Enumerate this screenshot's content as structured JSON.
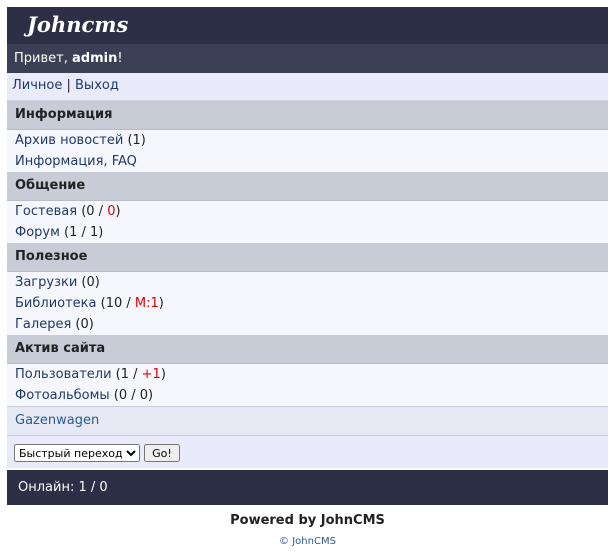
{
  "header": {
    "logo": "Johncms"
  },
  "greeting": {
    "before": "Привет, ",
    "user": "admin",
    "after": "!"
  },
  "user_menu": [
    {
      "text": "Личное"
    },
    {
      "text": " | "
    },
    {
      "text": "Выход"
    }
  ],
  "sections": [
    {
      "title": "Информация",
      "items": [
        {
          "link": "Архив новостей",
          "count": [
            {
              "text": " (1)"
            }
          ]
        },
        {
          "link": "Информация, FAQ",
          "count": []
        }
      ]
    },
    {
      "title": "Общение",
      "items": [
        {
          "link": "Гостевая",
          "count": [
            {
              "text": " (0 / "
            },
            {
              "text": "0",
              "color": "#e00000"
            },
            {
              "text": ")"
            }
          ]
        },
        {
          "link": "Форум",
          "count": [
            {
              "text": " (1 / 1)"
            }
          ]
        }
      ]
    },
    {
      "title": "Полезное",
      "items": [
        {
          "link": "Загрузки",
          "count": [
            {
              "text": " (0)"
            }
          ]
        },
        {
          "link": "Библиотека",
          "count": [
            {
              "text": " (10 / "
            },
            {
              "text": "М:1",
              "color": "#e00000"
            },
            {
              "text": ")"
            }
          ]
        },
        {
          "link": "Галерея",
          "count": [
            {
              "text": " (0)"
            }
          ]
        }
      ]
    },
    {
      "title": "Актив сайта",
      "items": [
        {
          "link": "Пользователи",
          "count": [
            {
              "text": " (1 / "
            },
            {
              "text": "+1",
              "color": "#e00000"
            },
            {
              "text": ")"
            }
          ]
        },
        {
          "link": "Фотоальбомы",
          "count": [
            {
              "text": " (0 / 0)"
            }
          ]
        }
      ]
    }
  ],
  "extra_link": "Gazenwagen",
  "quick_jump": {
    "select": "Быстрый переход",
    "button": "Go!"
  },
  "online": "Онлайн: 1 / 0",
  "powered": "Powered by JohnCMS",
  "copyright": "© JohnCMS"
}
